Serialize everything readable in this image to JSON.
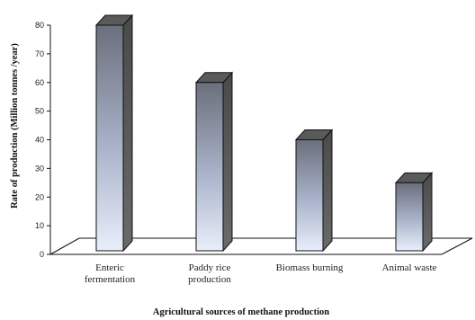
{
  "chart_data": {
    "type": "bar",
    "categories": [
      [
        "Enteric",
        "fermentation"
      ],
      [
        "Paddy rice",
        "production"
      ],
      [
        "Biomass burning"
      ],
      [
        "Animal waste"
      ]
    ],
    "values": [
      80,
      60,
      40,
      25
    ],
    "ylim": [
      0,
      80
    ],
    "yticks": [
      0,
      10,
      20,
      30,
      40,
      50,
      60,
      70,
      80
    ],
    "xlabel": "Agricultural  sources of methane production",
    "ylabel": "Rate of production  (Million tonnes /year)",
    "grid": false,
    "style": "3d-column",
    "colors": {
      "bar_top": "#5a5a5a",
      "bar_side": "#5a5a5a",
      "bar_front_dark": "#6b6f7c",
      "bar_front_light": "#e6ecf8"
    }
  }
}
